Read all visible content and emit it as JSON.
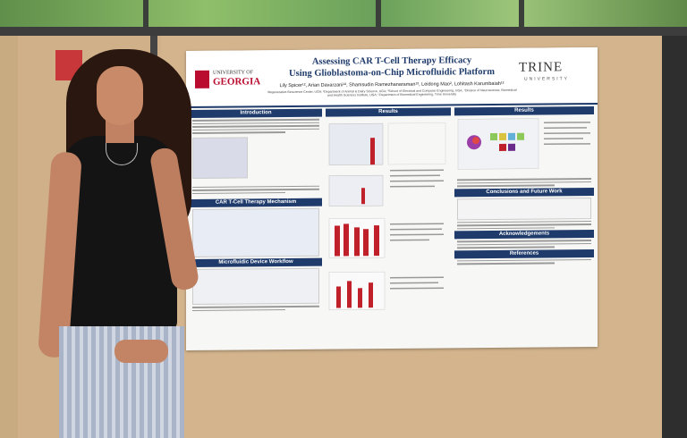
{
  "poster": {
    "university_line_1": "UNIVERSITY OF",
    "university_line_2": "GEORGIA",
    "title_line_1": "Assessing CAR T-Cell Therapy Efficacy",
    "title_line_2": "Using Glioblastoma-on-Chip Microfluidic Platform",
    "authors": "Lily Spicer¹², Arian Davarzani¹², Shamsudin Ramezhanaraman¹², Leidong Mao², Lohitash Karumbaiah¹²",
    "affiliations": "¹Regenerative Bioscience Center, UGA; ²Department of Animal & Dairy Science, UGA; ³School of Electrical and Computer Engineering, UGA; ⁴Division of Neuroscience, Biomedical and Health Sciences Institute, UGA; ⁵Department of Biomedical Engineering, Trine University",
    "trine_name": "TRINE",
    "trine_sub": "UNIVERSITY",
    "sections": {
      "introduction": "Introduction",
      "results_1": "Results",
      "results_2": "Results",
      "car_mechanism": "CAR T-Cell Therapy Mechanism",
      "workflow": "Microfluidic Device Workflow",
      "conclusions": "Conclusions and Future Work",
      "acknowledgements": "Acknowledgements",
      "references": "References"
    }
  },
  "colors": {
    "poster_blue": "#1f3b6b",
    "uga_red": "#ba0c2f",
    "chart_red": "#c0202a"
  }
}
